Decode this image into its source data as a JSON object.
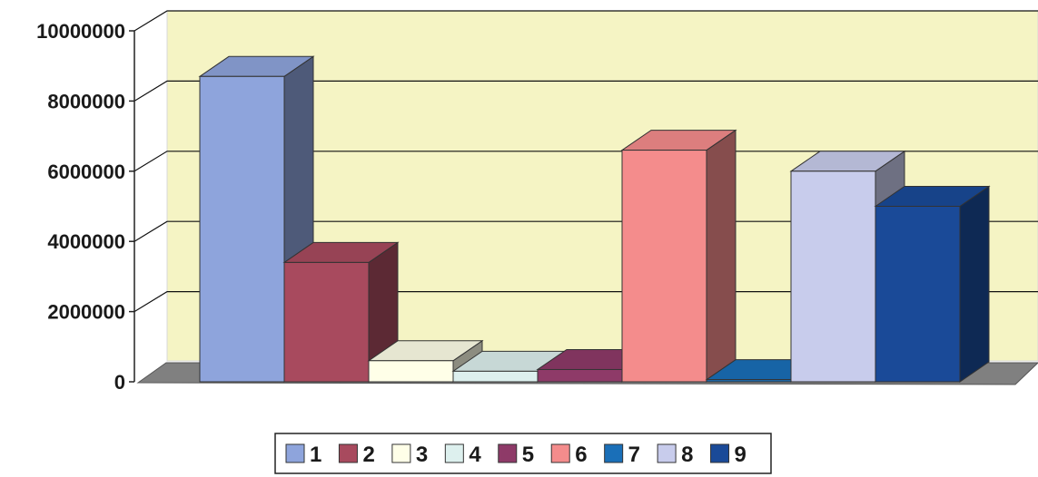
{
  "chart_data": {
    "type": "bar",
    "categories": [
      "1",
      "2",
      "3",
      "4",
      "5",
      "6",
      "7",
      "8",
      "9"
    ],
    "values": [
      8700000,
      3400000,
      600000,
      300000,
      350000,
      6600000,
      60000,
      6000000,
      5000000
    ],
    "ylim": [
      0,
      10000000
    ],
    "yticks": [
      0,
      2000000,
      4000000,
      6000000,
      8000000,
      10000000
    ],
    "yticklabels": [
      "0",
      "2000000",
      "4000000",
      "6000000",
      "8000000",
      "10000000"
    ],
    "title": "",
    "xlabel": "",
    "ylabel": "",
    "grid": true,
    "legend_position": "bottom",
    "series_colors": [
      "#8EA4DC",
      "#A84A5E",
      "#FFFFE8",
      "#DDF0EE",
      "#8E3A68",
      "#F48C8C",
      "#1A6FB8",
      "#C8CCEC",
      "#1A4A98"
    ],
    "wall_color": "#F5F4C4",
    "floor_color": "#808080"
  }
}
